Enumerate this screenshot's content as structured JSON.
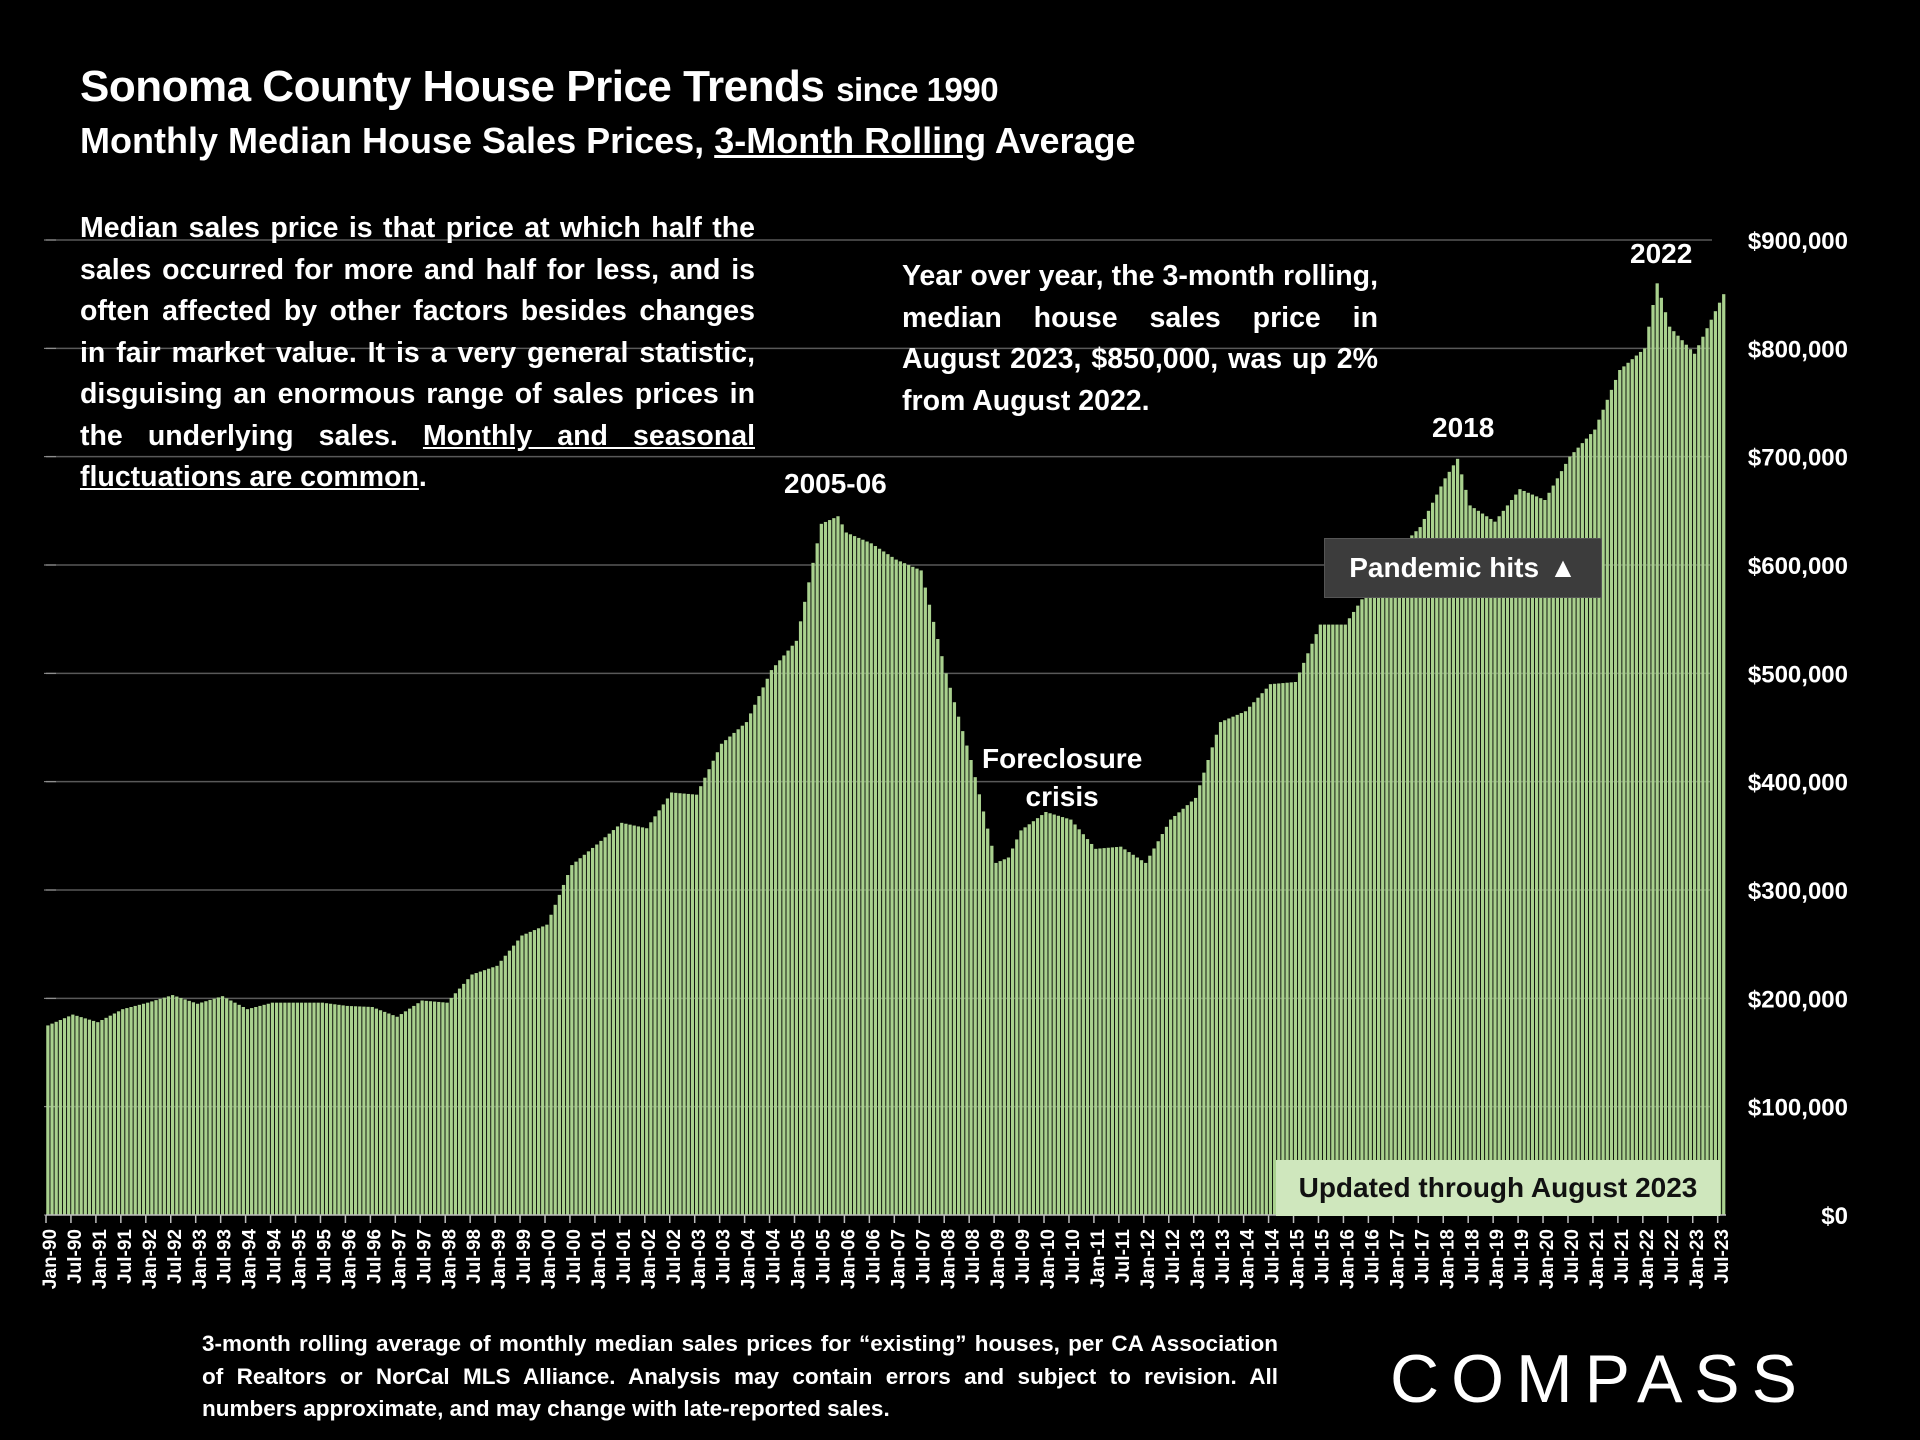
{
  "header": {
    "title": "Sonoma County House Price Trends",
    "title_suffix": "since 1990",
    "subtitle_pre": "Monthly Median House Sales Prices,",
    "subtitle_underlined": "3-Month Rolling",
    "subtitle_post": "Average"
  },
  "notes": {
    "left_text": "Median sales price is that price at which half the sales occurred for more and half for less, and is often affected by other factors besides changes in fair market value. It is a very general statistic, disguising an enormous range of sales prices in the underlying sales.",
    "left_underlined": "Monthly and seasonal fluctuations are common",
    "left_end": ".",
    "right_text": "Year over year, the 3-month rolling, median house sales price in August 2023, $850,000, was up 2% from August 2022."
  },
  "annotations": {
    "peak_2005": "2005-06",
    "foreclosure_line1": "Foreclosure",
    "foreclosure_line2": "crisis",
    "peak_2018": "2018",
    "peak_2022": "2022",
    "pandemic": "Pandemic hits",
    "pandemic_arrow": "▲",
    "updated": "Updated through August 2023"
  },
  "footnote": "3-month rolling average of monthly median sales prices for “existing” houses, per CA Association of Realtors or NorCal MLS Alliance. Analysis may contain errors and subject to revision. All numbers approximate, and may change with late-reported sales.",
  "logo": {
    "text": "COMPASS"
  },
  "colors": {
    "background": "#000000",
    "bar": "#a9d18e",
    "gridline": "#595959",
    "text": "#ffffff",
    "updated_box": "#cfe7bd",
    "pandemic_box": "#3c3c3c"
  },
  "chart_data": {
    "type": "bar",
    "title": "Sonoma County House Price Trends since 1990",
    "xlabel": "",
    "ylabel": "",
    "ylim": [
      0,
      900000
    ],
    "y_ticks": [
      0,
      100000,
      200000,
      300000,
      400000,
      500000,
      600000,
      700000,
      800000,
      900000
    ],
    "y_tick_labels": [
      "$0",
      "$100,000",
      "$200,000",
      "$300,000",
      "$400,000",
      "$500,000",
      "$600,000",
      "$700,000",
      "$800,000",
      "$900,000"
    ],
    "x_tick_labels": [
      "Jan-90",
      "Jul-90",
      "Jan-91",
      "Jul-91",
      "Jan-92",
      "Jul-92",
      "Jan-93",
      "Jul-93",
      "Jan-94",
      "Jul-94",
      "Jan-95",
      "Jul-95",
      "Jan-96",
      "Jul-96",
      "Jan-97",
      "Jul-97",
      "Jan-98",
      "Jul-98",
      "Jan-99",
      "Jul-99",
      "Jan-00",
      "Jul-00",
      "Jan-01",
      "Jul-01",
      "Jan-02",
      "Jul-02",
      "Jan-03",
      "Jul-03",
      "Jan-04",
      "Jul-04",
      "Jan-05",
      "Jul-05",
      "Jan-06",
      "Jul-06",
      "Jan-07",
      "Jul-07",
      "Jan-08",
      "Jul-08",
      "Jan-09",
      "Jul-09",
      "Jan-10",
      "Jul-10",
      "Jan-11",
      "Jul-11",
      "Jan-12",
      "Jul-12",
      "Jan-13",
      "Jul-13",
      "Jan-14",
      "Jul-14",
      "Jan-15",
      "Jul-15",
      "Jan-16",
      "Jul-16",
      "Jan-17",
      "Jul-17",
      "Jan-18",
      "Jul-18",
      "Jan-19",
      "Jul-19",
      "Jan-20",
      "Jul-20",
      "Jan-21",
      "Jul-21",
      "Jan-22",
      "Jul-22",
      "Jan-23",
      "Jul-23"
    ],
    "series_start": "Jan-90",
    "series_end": "Aug-23",
    "anchor_months": [
      "Jan-90",
      "Jul-90",
      "Jan-91",
      "Jul-91",
      "Jan-92",
      "Jul-92",
      "Jan-93",
      "Jul-93",
      "Jan-94",
      "Jul-94",
      "Jan-95",
      "Jul-95",
      "Jan-96",
      "Jul-96",
      "Jan-97",
      "Jul-97",
      "Jan-98",
      "Jul-98",
      "Jan-99",
      "Jul-99",
      "Jan-00",
      "Jul-00",
      "Jan-01",
      "Jul-01",
      "Jan-02",
      "Jul-02",
      "Jan-03",
      "Jul-03",
      "Jan-04",
      "Jul-04",
      "Jan-05",
      "Jul-05",
      "Nov-05",
      "Jan-06",
      "Apr-06",
      "Jul-06",
      "Jan-07",
      "Apr-07",
      "Jul-07",
      "Jan-08",
      "Jul-08",
      "Jan-09",
      "Apr-09",
      "Jul-09",
      "Jan-10",
      "Jul-10",
      "Jan-11",
      "Jul-11",
      "Jan-12",
      "Jul-12",
      "Jan-13",
      "Jul-13",
      "Jan-14",
      "Jul-14",
      "Jan-15",
      "Jul-15",
      "Jan-16",
      "Jul-16",
      "Jan-17",
      "Jul-17",
      "Jan-18",
      "Apr-18",
      "Jul-18",
      "Jan-19",
      "Jul-19",
      "Jan-20",
      "Jul-20",
      "Jan-21",
      "Jul-21",
      "Jan-22",
      "Apr-22",
      "Jul-22",
      "Jan-23",
      "Aug-23"
    ],
    "anchor_values": [
      175000,
      185000,
      178000,
      190000,
      196000,
      203000,
      195000,
      202000,
      190000,
      196000,
      196000,
      196000,
      193000,
      192000,
      183000,
      198000,
      196000,
      222000,
      230000,
      258000,
      268000,
      323000,
      342000,
      362000,
      357000,
      390000,
      388000,
      435000,
      455000,
      503000,
      530000,
      638000,
      645000,
      630000,
      625000,
      620000,
      605000,
      600000,
      595000,
      500000,
      420000,
      325000,
      330000,
      355000,
      372000,
      365000,
      338000,
      340000,
      325000,
      365000,
      385000,
      455000,
      465000,
      490000,
      492000,
      545000,
      545000,
      580000,
      612000,
      635000,
      680000,
      698000,
      655000,
      640000,
      670000,
      660000,
      700000,
      725000,
      780000,
      800000,
      860000,
      820000,
      795000,
      850000
    ]
  }
}
